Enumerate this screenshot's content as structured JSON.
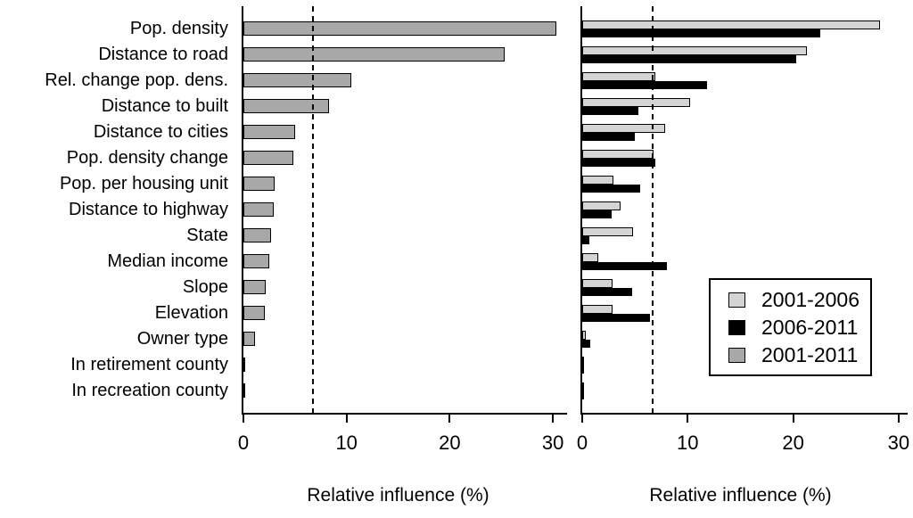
{
  "chart_data": {
    "type": "bar",
    "orientation": "horizontal",
    "title": "",
    "categories": [
      "Pop. density",
      "Distance to road",
      "Rel. change pop. dens.",
      "Distance to built",
      "Distance to cities",
      "Pop. density change",
      "Pop. per housing unit",
      "Distance to highway",
      "State",
      "Median income",
      "Slope",
      "Elevation",
      "Owner type",
      "In retirement county",
      "In recreation county"
    ],
    "panels": [
      {
        "name": "left",
        "xlabel": "Relative influence (%)",
        "xlim": [
          0,
          30
        ],
        "xticks": [
          0,
          10,
          20,
          30
        ],
        "dashed_line_x": 6.7,
        "grid": false,
        "series": [
          {
            "name": "2001-2011",
            "color": "#a8a8a8",
            "values": [
              30.3,
              25.3,
              10.5,
              8.3,
              5.0,
              4.8,
              3.0,
              2.9,
              2.7,
              2.5,
              2.2,
              2.1,
              1.1,
              0.1,
              0.1
            ]
          }
        ]
      },
      {
        "name": "right",
        "xlabel": "Relative influence (%)",
        "xlim": [
          0,
          30
        ],
        "xticks": [
          0,
          10,
          20,
          30
        ],
        "dashed_line_x": 6.7,
        "grid": false,
        "series": [
          {
            "name": "2001-2006",
            "color": "#d4d4d4",
            "values": [
              28.2,
              21.3,
              6.9,
              10.2,
              7.9,
              6.8,
              3.0,
              3.6,
              4.8,
              1.5,
              2.9,
              2.9,
              0.3,
              0.1,
              0.1
            ]
          },
          {
            "name": "2006-2011",
            "color": "#000000",
            "values": [
              22.6,
              20.3,
              11.8,
              5.3,
              5.0,
              6.9,
              5.5,
              2.8,
              0.7,
              8.0,
              4.7,
              6.4,
              0.8,
              0.1,
              0.1
            ]
          }
        ]
      }
    ],
    "legend": {
      "position": "right-panel-inset",
      "entries": [
        {
          "label": "2001-2006",
          "color": "#d4d4d4"
        },
        {
          "label": "2006-2011",
          "color": "#000000"
        },
        {
          "label": "2001-2011",
          "color": "#a8a8a8"
        }
      ]
    },
    "colors": {
      "background": "#ffffff",
      "axis": "#000000",
      "bar_outline": "#000000"
    }
  }
}
